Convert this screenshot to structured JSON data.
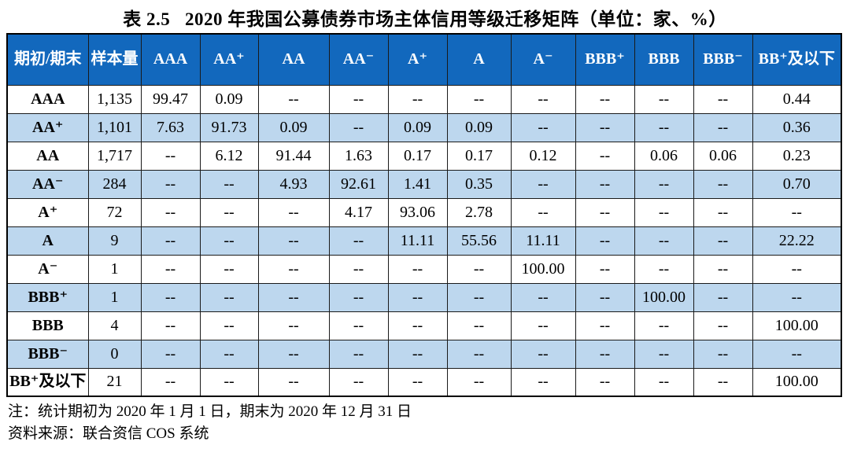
{
  "title": "表 2.5   2020 年我国公募债券市场主体信用等级迁移矩阵（单位：家、%）",
  "colors": {
    "header_bg": "#1268BD",
    "header_text": "#FFFFFF",
    "alt_row_bg": "#BDD7EE",
    "border": "#000000"
  },
  "table": {
    "columns": [
      "期初/期末",
      "样本量",
      "AAA",
      "AA⁺",
      "AA",
      "AA⁻",
      "A⁺",
      "A",
      "A⁻",
      "BBB⁺",
      "BBB",
      "BBB⁻",
      "BB⁺及以下"
    ],
    "rows": [
      {
        "label": "AAA",
        "sample": "1,135",
        "values": [
          "99.47",
          "0.09",
          "--",
          "--",
          "--",
          "--",
          "--",
          "--",
          "--",
          "--",
          "0.44"
        ]
      },
      {
        "label": "AA⁺",
        "sample": "1,101",
        "values": [
          "7.63",
          "91.73",
          "0.09",
          "--",
          "0.09",
          "0.09",
          "--",
          "--",
          "--",
          "--",
          "0.36"
        ]
      },
      {
        "label": "AA",
        "sample": "1,717",
        "values": [
          "--",
          "6.12",
          "91.44",
          "1.63",
          "0.17",
          "0.17",
          "0.12",
          "--",
          "0.06",
          "0.06",
          "0.23"
        ]
      },
      {
        "label": "AA⁻",
        "sample": "284",
        "values": [
          "--",
          "--",
          "4.93",
          "92.61",
          "1.41",
          "0.35",
          "--",
          "--",
          "--",
          "--",
          "0.70"
        ]
      },
      {
        "label": "A⁺",
        "sample": "72",
        "values": [
          "--",
          "--",
          "--",
          "4.17",
          "93.06",
          "2.78",
          "--",
          "--",
          "--",
          "--",
          "--"
        ]
      },
      {
        "label": "A",
        "sample": "9",
        "values": [
          "--",
          "--",
          "--",
          "--",
          "11.11",
          "55.56",
          "11.11",
          "--",
          "--",
          "--",
          "22.22"
        ]
      },
      {
        "label": "A⁻",
        "sample": "1",
        "values": [
          "--",
          "--",
          "--",
          "--",
          "--",
          "--",
          "100.00",
          "--",
          "--",
          "--",
          "--"
        ]
      },
      {
        "label": "BBB⁺",
        "sample": "1",
        "values": [
          "--",
          "--",
          "--",
          "--",
          "--",
          "--",
          "--",
          "--",
          "100.00",
          "--",
          "--"
        ]
      },
      {
        "label": "BBB",
        "sample": "4",
        "values": [
          "--",
          "--",
          "--",
          "--",
          "--",
          "--",
          "--",
          "--",
          "--",
          "--",
          "100.00"
        ]
      },
      {
        "label": "BBB⁻",
        "sample": "0",
        "values": [
          "--",
          "--",
          "--",
          "--",
          "--",
          "--",
          "--",
          "--",
          "--",
          "--",
          "--"
        ]
      },
      {
        "label": "BB⁺及以下",
        "sample": "21",
        "values": [
          "--",
          "--",
          "--",
          "--",
          "--",
          "--",
          "--",
          "--",
          "--",
          "--",
          "100.00"
        ]
      }
    ]
  },
  "notes": {
    "note": "注：统计期初为 2020 年 1 月 1 日，期末为 2020 年 12 月 31 日",
    "source": "资料来源：联合资信 COS 系统"
  }
}
